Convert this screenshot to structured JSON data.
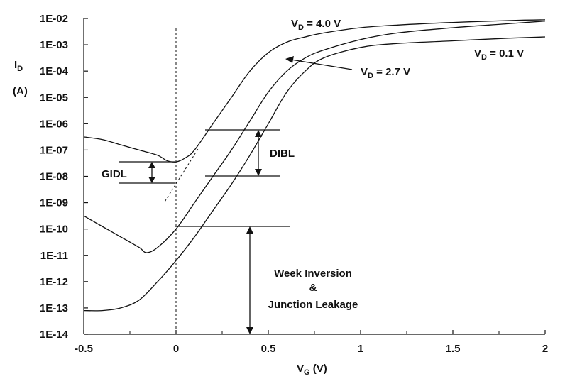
{
  "chart_data": {
    "type": "line",
    "title": "",
    "ylabel": "I",
    "ylabel_sub": "D",
    "yunit": "(A)",
    "xlabel": "V",
    "xlabel_sub": "G",
    "xunit": " (V)",
    "xlim": [
      -0.5,
      2.0
    ],
    "ylim_log10": [
      -14,
      -2
    ],
    "y_scale": "log",
    "grid": false,
    "x_ticks": [
      -0.5,
      0,
      0.5,
      1,
      1.5,
      2
    ],
    "x_tick_labels": [
      "-0.5",
      "0",
      "0.5",
      "1",
      "1.5",
      "2"
    ],
    "y_ticks_log10": [
      -14,
      -13,
      -12,
      -11,
      -10,
      -9,
      -8,
      -7,
      -6,
      -5,
      -4,
      -3,
      -2
    ],
    "y_tick_labels": [
      "1E-14",
      "1E-13",
      "1E-12",
      "1E-11",
      "1E-10",
      "1E-09",
      "1E-08",
      "1E-07",
      "1E-06",
      "1E-05",
      "1E-04",
      "1E-03",
      "1E-02"
    ],
    "series": [
      {
        "name": "V_D = 0.1 V",
        "label_main": "V",
        "label_sub": "D",
        "label_rest": " = 0.1 V",
        "x": [
          -0.5,
          -0.4,
          -0.3,
          -0.2,
          -0.1,
          0.0,
          0.1,
          0.2,
          0.3,
          0.4,
          0.5,
          0.6,
          0.7,
          0.8,
          1.0,
          1.2,
          1.5,
          1.8,
          2.0
        ],
        "log10y": [
          -13.1,
          -13.1,
          -13.0,
          -12.7,
          -12.0,
          -11.2,
          -10.3,
          -9.3,
          -8.3,
          -7.2,
          -6.0,
          -4.8,
          -4.0,
          -3.5,
          -3.1,
          -2.95,
          -2.85,
          -2.75,
          -2.7
        ]
      },
      {
        "name": "V_D = 2.7 V",
        "label_main": "V",
        "label_sub": "D",
        "label_rest": " = 2.7 V",
        "x": [
          -0.5,
          -0.4,
          -0.3,
          -0.2,
          -0.16,
          -0.1,
          0.0,
          0.1,
          0.2,
          0.3,
          0.4,
          0.5,
          0.6,
          0.7,
          0.8,
          1.0,
          1.2,
          1.5,
          1.8,
          2.0
        ],
        "log10y": [
          -9.5,
          -9.9,
          -10.3,
          -10.7,
          -10.9,
          -10.7,
          -10.0,
          -9.0,
          -8.0,
          -7.0,
          -5.9,
          -4.8,
          -4.0,
          -3.5,
          -3.2,
          -2.8,
          -2.55,
          -2.35,
          -2.2,
          -2.1
        ]
      },
      {
        "name": "V_D = 4.0 V",
        "label_main": "V",
        "label_sub": "D",
        "label_rest": " = 4.0 V",
        "x": [
          -0.5,
          -0.4,
          -0.3,
          -0.2,
          -0.1,
          -0.05,
          0.0,
          0.05,
          0.1,
          0.2,
          0.3,
          0.4,
          0.5,
          0.6,
          0.7,
          0.8,
          1.0,
          1.2,
          1.5,
          1.8,
          2.0
        ],
        "log10y": [
          -6.5,
          -6.6,
          -6.8,
          -7.0,
          -7.2,
          -7.4,
          -7.45,
          -7.3,
          -7.0,
          -6.0,
          -5.0,
          -4.0,
          -3.3,
          -2.9,
          -2.7,
          -2.55,
          -2.35,
          -2.25,
          -2.15,
          -2.08,
          -2.05
        ]
      }
    ],
    "annotations": {
      "gidl": "GIDL",
      "dibl": "DIBL",
      "leak_line1": "Week Inversion",
      "leak_line2": "&",
      "leak_line3": "Junction Leakage"
    }
  }
}
